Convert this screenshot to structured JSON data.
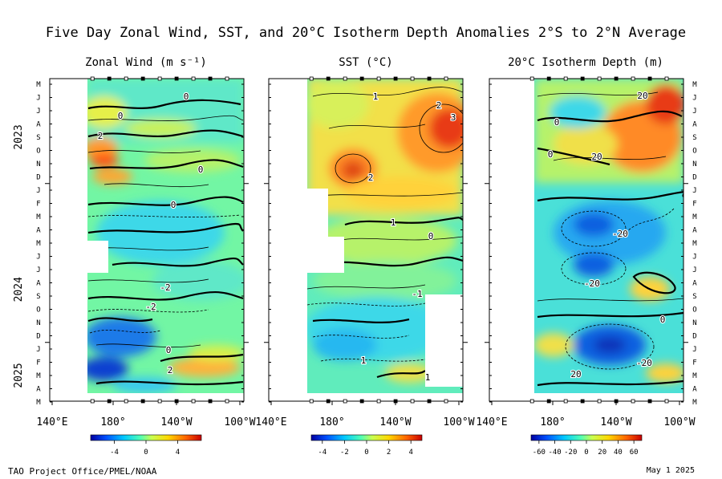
{
  "header": {
    "title": "Five Day Zonal Wind, SST, and 20°C Isotherm Depth Anomalies  2°S to 2°N Average"
  },
  "footer": {
    "credit": "TAO Project Office/PMEL/NOAA",
    "date": "May  1 2025"
  },
  "chart_data": [
    {
      "type": "heatmap",
      "title": "Zonal Wind (m s⁻¹)",
      "x_ticks": [
        "140°E",
        "180°",
        "140°W",
        "100°W"
      ],
      "y_month_labels": [
        "M",
        "J",
        "J",
        "A",
        "S",
        "O",
        "N",
        "D",
        "J",
        "F",
        "M",
        "A",
        "M",
        "J",
        "J",
        "A",
        "S",
        "O",
        "N",
        "D",
        "J",
        "F",
        "M",
        "A",
        "M"
      ],
      "year_labels": [
        "2023",
        "2024",
        "2025"
      ],
      "colorbar": {
        "ticks": [
          "-4",
          "0",
          "4"
        ],
        "range": [
          -7,
          7
        ],
        "colors": [
          "#0000a0",
          "#0050ff",
          "#00c8ff",
          "#50ffb4",
          "#c8ff50",
          "#ffd700",
          "#ff6400",
          "#c80000"
        ]
      },
      "contour_labels": [
        "0",
        "0",
        "0",
        "2",
        "-2",
        "0",
        "-2",
        "0",
        "2"
      ]
    },
    {
      "type": "heatmap",
      "title": "SST (°C)",
      "x_ticks": [
        "140°E",
        "180°",
        "140°W",
        "100°W"
      ],
      "colorbar": {
        "ticks": [
          "-4",
          "-2",
          "0",
          "2",
          "4"
        ],
        "range": [
          -5,
          5
        ],
        "colors": [
          "#0000a0",
          "#0050ff",
          "#00c8ff",
          "#50ffb4",
          "#c8ff50",
          "#ffd700",
          "#ff6400",
          "#c80000"
        ]
      },
      "contour_labels": [
        "1",
        "2",
        "3",
        "2",
        "1",
        "0",
        "-1",
        "1",
        "1"
      ]
    },
    {
      "type": "heatmap",
      "title": "20°C Isotherm Depth (m)",
      "x_ticks": [
        "140°E",
        "180°",
        "140°W",
        "100°W"
      ],
      "y_month_labels": [
        "M",
        "J",
        "J",
        "A",
        "S",
        "O",
        "N",
        "D",
        "J",
        "F",
        "M",
        "A",
        "M",
        "J",
        "J",
        "A",
        "S",
        "O",
        "N",
        "D",
        "J",
        "F",
        "M",
        "A",
        "M"
      ],
      "colorbar": {
        "ticks": [
          "-60",
          "-40",
          "-20",
          "0",
          "20",
          "40",
          "60"
        ],
        "range": [
          -70,
          70
        ],
        "colors": [
          "#0000a0",
          "#0050ff",
          "#00c8ff",
          "#50ffb4",
          "#c8ff50",
          "#ffd700",
          "#ff6400",
          "#c80000"
        ]
      },
      "contour_labels": [
        "20",
        "0",
        "20",
        "0",
        "-20",
        "-20",
        "0",
        "-20",
        "20"
      ]
    }
  ]
}
